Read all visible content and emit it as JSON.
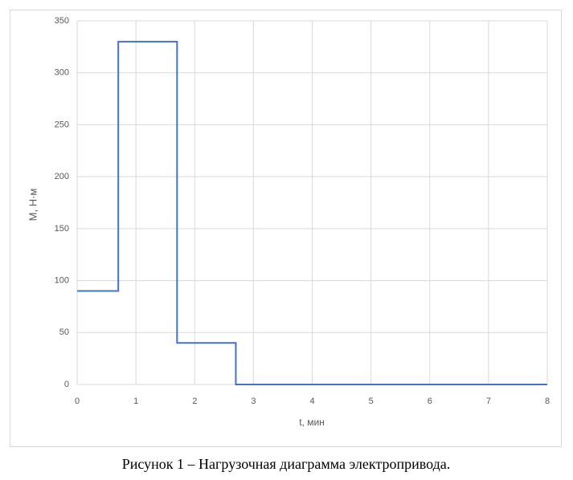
{
  "chart_data": {
    "type": "line",
    "x_label": "t, мин",
    "y_label": "M, Н·м",
    "x": [
      0,
      0.7,
      0.7,
      1.7,
      1.7,
      2.7,
      2.7,
      8
    ],
    "values": [
      90,
      90,
      330,
      330,
      40,
      40,
      0,
      0
    ],
    "color": "#4472c4",
    "xlim": [
      0,
      8
    ],
    "xticks": [
      0,
      1,
      2,
      3,
      4,
      5,
      6,
      7,
      8
    ],
    "ylim": [
      0,
      350
    ],
    "yticks": [
      0,
      50,
      100,
      150,
      200,
      250,
      300,
      350
    ],
    "grid": true
  },
  "caption": "Рисунок 1 – Нагрузочная диаграмма электропривода."
}
